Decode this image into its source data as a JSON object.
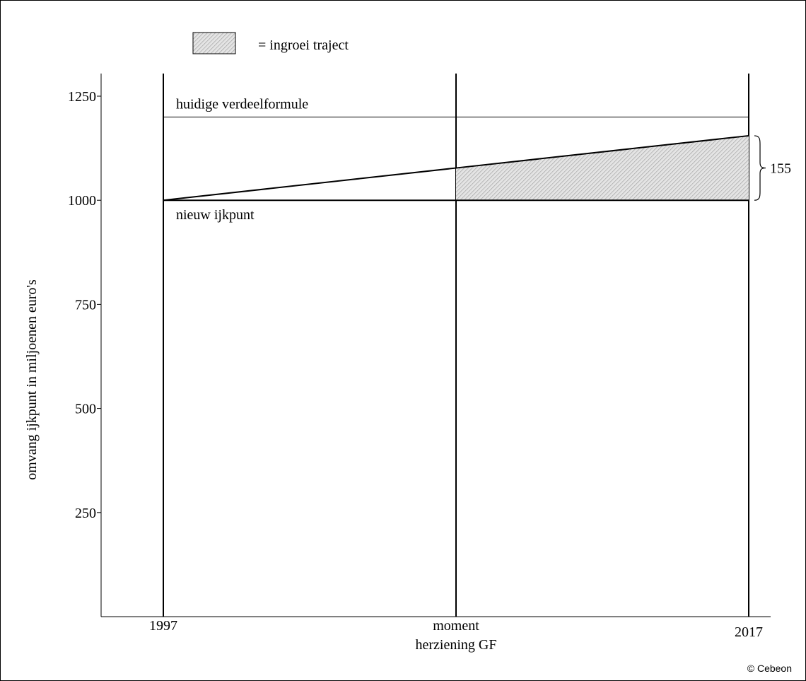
{
  "chart_data": {
    "type": "line",
    "title": "",
    "xlabel": "",
    "ylabel": "omvang ijkpunt in miljoenen euro's",
    "y_ticks": [
      250,
      500,
      750,
      1000,
      1250
    ],
    "ylim": [
      0,
      1300
    ],
    "x_categories": [
      "1997",
      "moment herziening GF",
      "2017"
    ],
    "x_category_labels": [
      {
        "lines": [
          "1997"
        ]
      },
      {
        "lines": [
          "moment",
          "herziening GF"
        ]
      },
      {
        "lines": [
          "2017"
        ]
      }
    ],
    "series": [
      {
        "name": "huidige verdeelformule",
        "values": [
          1200,
          1200,
          1200
        ]
      },
      {
        "name": "nieuw ijkpunt",
        "values": [
          1000,
          1000,
          1000
        ]
      },
      {
        "values": [
          1000,
          1077.5,
          1155
        ]
      }
    ],
    "shaded_region": {
      "label": "= ingroei traject",
      "from_category": 1,
      "to_category": 2,
      "lower": 1000,
      "upper_start": 1077.5,
      "upper_end": 1155
    },
    "annotation": {
      "text": "155",
      "from": 1000,
      "to": 1155,
      "at_category": 2
    },
    "grid": false,
    "legend_position": "top-center",
    "credit": "© Cebeon"
  }
}
